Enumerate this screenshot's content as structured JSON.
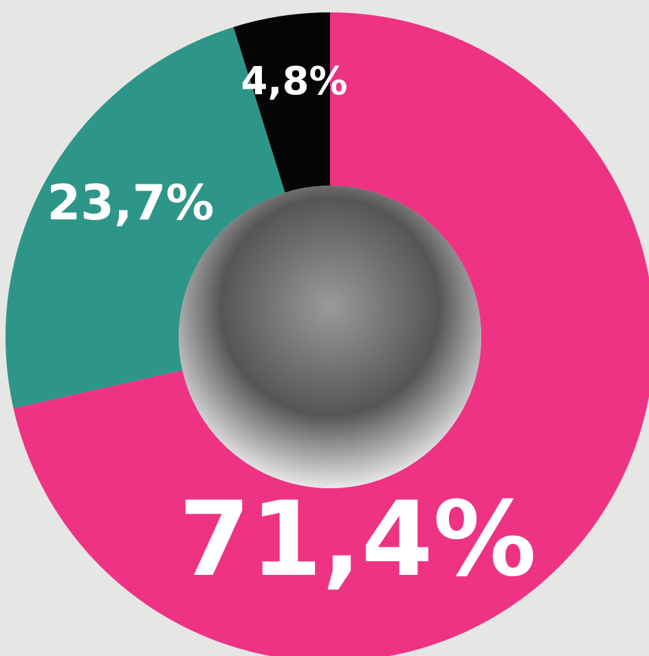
{
  "chart_data": {
    "type": "pie",
    "donut": true,
    "values": [
      71.4,
      23.7,
      4.8
    ],
    "value_labels": [
      "71,4%",
      "23,7%",
      "4,8%"
    ],
    "colors": [
      "#ee3384",
      "#2e9688",
      "#050505"
    ]
  }
}
